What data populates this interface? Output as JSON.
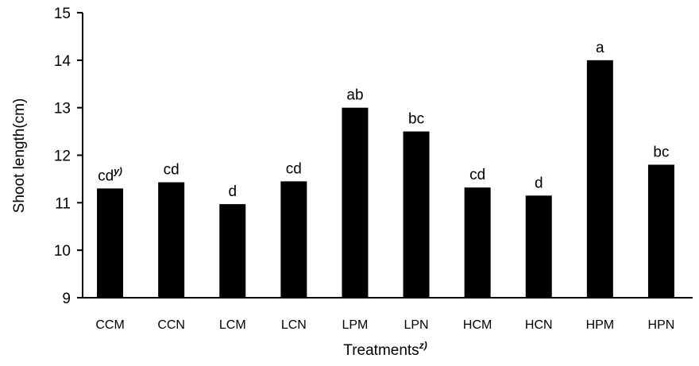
{
  "chart_data": {
    "type": "bar",
    "categories": [
      "CCM",
      "CCN",
      "LCM",
      "LCN",
      "LPM",
      "LPN",
      "HCM",
      "HCN",
      "HPM",
      "HPN"
    ],
    "values": [
      11.3,
      11.43,
      10.97,
      11.45,
      13.0,
      12.5,
      11.32,
      11.15,
      14.0,
      11.8
    ],
    "data_labels": [
      "cd",
      "cd",
      "d",
      "cd",
      "ab",
      "bc",
      "cd",
      "d",
      "a",
      "bc"
    ],
    "first_label_superscript": "y)",
    "title": "",
    "xlabel": "Treatments",
    "xlabel_superscript": "z)",
    "ylabel": "Shoot length(cm)",
    "ylim": [
      9,
      15
    ],
    "yticks": [
      9,
      10,
      11,
      12,
      13,
      14,
      15
    ],
    "grid": false,
    "legend": "none",
    "bar_color": "#000000"
  }
}
